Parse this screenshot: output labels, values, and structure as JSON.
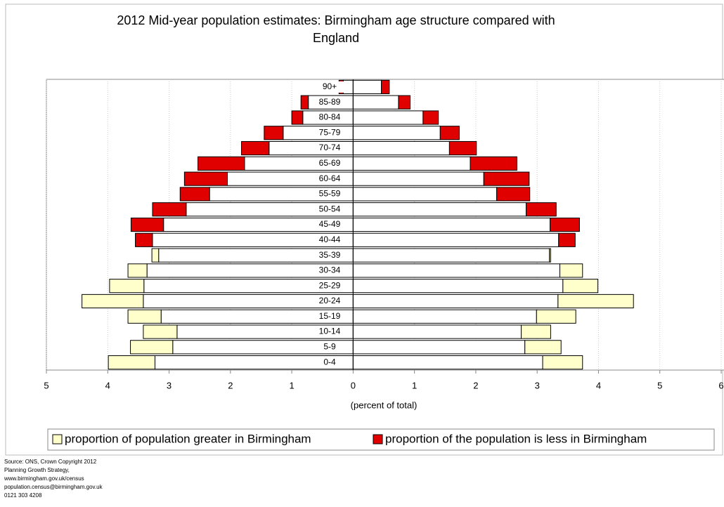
{
  "chart_data": {
    "type": "pyramid",
    "title": [
      "2012 Mid-year population estimates: Birmingham age structure compared with",
      "England"
    ],
    "xlabel": "(percent of total)",
    "categories": [
      "0-4",
      "5-9",
      "10-14",
      "15-19",
      "20-24",
      "25-29",
      "30-34",
      "35-39",
      "40-44",
      "45-49",
      "50-54",
      "55-59",
      "60-64",
      "65-69",
      "70-74",
      "75-79",
      "80-84",
      "85-89",
      "90+"
    ],
    "series": [
      {
        "side": "left",
        "birmingham": [
          3.99,
          3.63,
          3.42,
          3.67,
          4.42,
          3.97,
          3.67,
          3.28,
          3.27,
          3.09,
          2.72,
          2.34,
          2.05,
          1.77,
          1.37,
          1.14,
          0.82,
          0.73,
          0.16
        ],
        "england": [
          3.23,
          2.94,
          2.87,
          3.13,
          3.42,
          3.41,
          3.36,
          3.17,
          3.55,
          3.62,
          3.27,
          2.82,
          2.75,
          2.53,
          1.82,
          1.45,
          1.0,
          0.85,
          0.23
        ]
      },
      {
        "side": "right",
        "birmingham": [
          3.74,
          3.39,
          3.22,
          3.63,
          4.57,
          3.99,
          3.74,
          3.22,
          3.35,
          3.21,
          2.82,
          2.34,
          2.13,
          1.91,
          1.57,
          1.42,
          1.14,
          0.74,
          0.46
        ],
        "england": [
          3.09,
          2.8,
          2.74,
          2.99,
          3.34,
          3.42,
          3.37,
          3.2,
          3.62,
          3.69,
          3.31,
          2.88,
          2.87,
          2.67,
          2.01,
          1.73,
          1.39,
          0.93,
          0.59
        ]
      }
    ],
    "base_color": "#ffffff",
    "greater_color": "#ffffcc",
    "less_color": "#e00000",
    "xlim": [
      -5,
      6
    ],
    "xticks": [
      {
        "value": -5,
        "label": "5"
      },
      {
        "value": -4,
        "label": "4"
      },
      {
        "value": -3,
        "label": "3"
      },
      {
        "value": -2,
        "label": "2"
      },
      {
        "value": -1,
        "label": "1"
      },
      0,
      1,
      2,
      3,
      4,
      5,
      6
    ],
    "grid": true,
    "legend": [
      "proportion of population greater in Birmingham",
      "proportion of the population is less in Birmingham"
    ]
  },
  "source": [
    "Source: ONS, Crown Copyright 2012",
    "Planning Growth Strategy,",
    "www.birmingham.gov.uk/census",
    "population.census@birmingham.gov.uk",
    "0121 303 4208"
  ]
}
